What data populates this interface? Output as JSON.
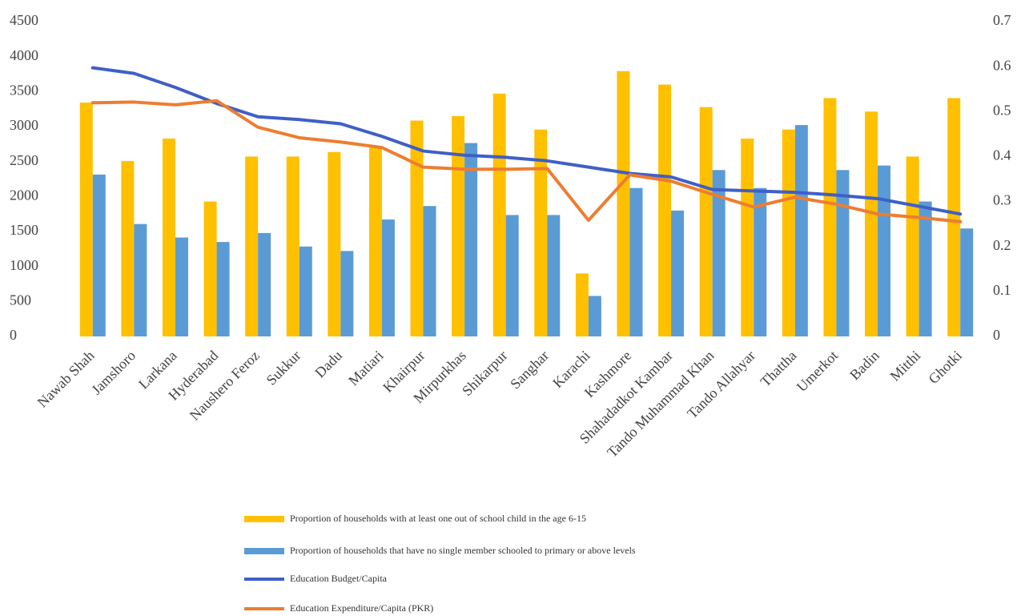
{
  "chart_data": {
    "type": "bar",
    "categories": [
      "Nawab Shah",
      "Jamshoro",
      "Larkana",
      "Hyderabad",
      "Naushero Feroz",
      "Sukkur",
      "Dadu",
      "Matiari",
      "Khairpur",
      "Mirpurkhas",
      "Shikarpur",
      "Sanghar",
      "Karachi",
      "Kashmore",
      "Shahadadkot Kambar",
      "Tando Muhammad Khan",
      "Tando Allahyar",
      "Thattha",
      "Umerkot",
      "Badin",
      "Mitthi",
      "Ghotki"
    ],
    "series": [
      {
        "name": "Proportion of households with at least one out of school child in the age 6-15",
        "type": "bar",
        "axis": "y2",
        "color": "#ffc000",
        "values": [
          0.52,
          0.39,
          0.44,
          0.3,
          0.4,
          0.4,
          0.41,
          0.42,
          0.48,
          0.49,
          0.54,
          0.46,
          0.14,
          0.59,
          0.56,
          0.51,
          0.44,
          0.46,
          0.53,
          0.5,
          0.4,
          0.53
        ]
      },
      {
        "name": "Proportion of households that have no single member schooled to primary or above levels",
        "type": "bar",
        "axis": "y2",
        "color": "#5b9bd5",
        "values": [
          0.36,
          0.25,
          0.22,
          0.21,
          0.23,
          0.2,
          0.19,
          0.26,
          0.29,
          0.43,
          0.27,
          0.27,
          0.09,
          0.33,
          0.28,
          0.37,
          0.33,
          0.47,
          0.37,
          0.38,
          0.3,
          0.24
        ]
      },
      {
        "name": "Education Budget/Capita",
        "type": "line",
        "color": "#3f5fc8",
        "values": [
          3840,
          3760,
          3560,
          3330,
          3140,
          3100,
          3040,
          2860,
          2650,
          2590,
          2560,
          2510,
          2420,
          2330,
          2280,
          2100,
          2080,
          2060,
          2020,
          1970,
          1860,
          1750
        ]
      },
      {
        "name": "Education Expenditure/Capita (PKR)",
        "type": "line",
        "color": "#ed7d31",
        "values": [
          3340,
          3350,
          3310,
          3370,
          2990,
          2840,
          2780,
          2700,
          2420,
          2390,
          2390,
          2400,
          1660,
          2310,
          2220,
          2030,
          1850,
          1990,
          1890,
          1750,
          1700,
          1640
        ]
      }
    ],
    "ylim": [
      0,
      4500
    ],
    "yticks": [
      0,
      500,
      1000,
      1500,
      2000,
      2500,
      3000,
      3500,
      4000,
      4500
    ],
    "y2lim": [
      0,
      0.7
    ],
    "y2ticks": [
      0,
      0.1,
      0.2,
      0.3,
      0.4,
      0.5,
      0.6,
      0.7
    ]
  }
}
